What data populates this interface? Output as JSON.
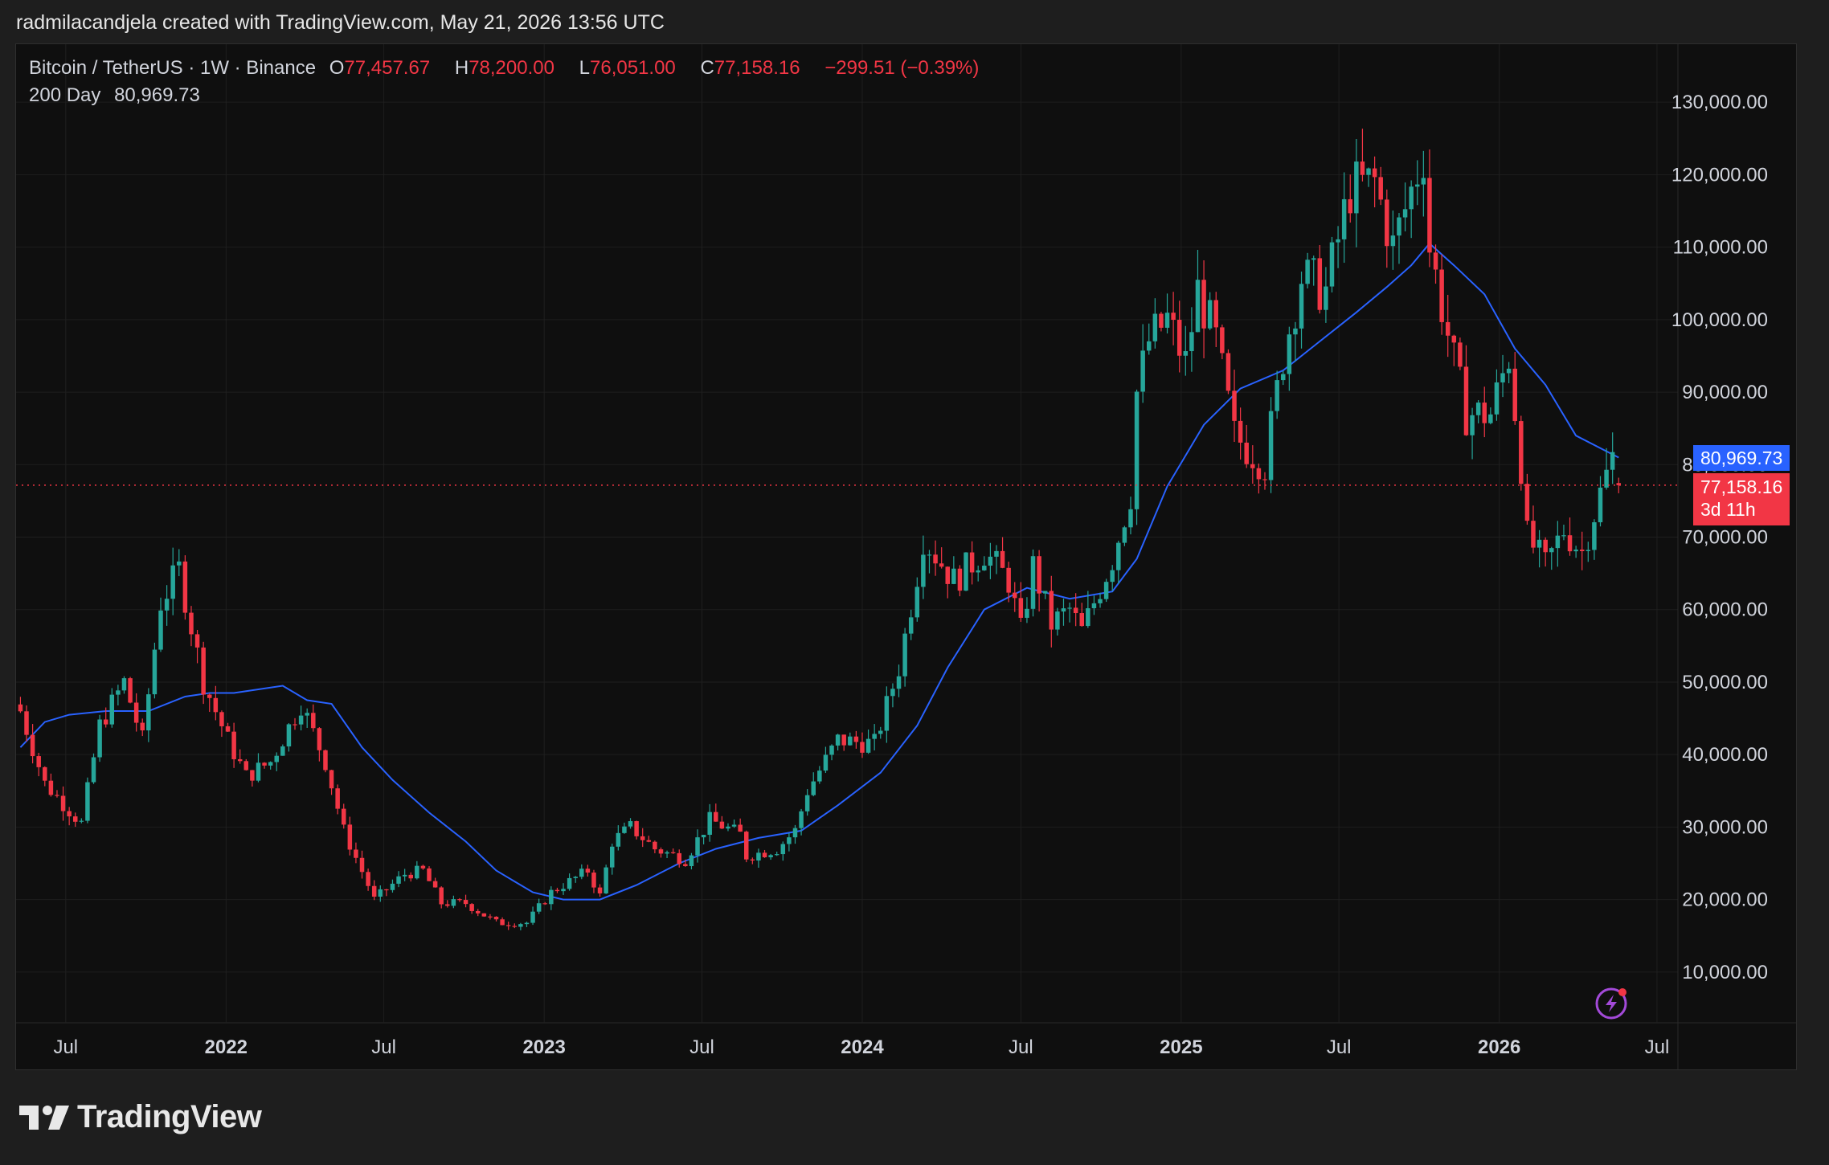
{
  "header": {
    "attribution": "radmilacandjela created with TradingView.com, May 21, 2026 13:56 UTC"
  },
  "legend": {
    "symbol": "Bitcoin / TetherUS · 1W · Binance",
    "open_label": "O",
    "open_value": "77,457.67",
    "high_label": "H",
    "high_value": "78,200.00",
    "low_label": "L",
    "low_value": "76,051.00",
    "close_label": "C",
    "close_value": "77,158.16",
    "change": "−299.51 (−0.39%)",
    "ma_label": "200 Day",
    "ma_value": "80,969.73"
  },
  "price_tags": {
    "ma": "80,969.73",
    "last": "77,158.16",
    "countdown": "3d 11h"
  },
  "footer": {
    "brand": "TradingView"
  },
  "colors": {
    "up": "#26a69a",
    "down": "#f23645",
    "ma": "#2962ff",
    "background": "#0f0f0f",
    "grid": "#1f1f1f",
    "text": "#d1d4dc"
  },
  "chart_data": {
    "type": "candlestick",
    "title": "Bitcoin / TetherUS · 1W · Binance",
    "ylim": [
      3000,
      138000
    ],
    "y_ticks": [
      10000,
      20000,
      30000,
      40000,
      50000,
      60000,
      70000,
      80000,
      90000,
      100000,
      110000,
      120000,
      130000
    ],
    "y_tick_labels": [
      "10,000.00",
      "20,000.00",
      "30,000.00",
      "40,000.00",
      "50,000.00",
      "60,000.00",
      "70,000.00",
      "80,000.00",
      "90,000.00",
      "100,000.00",
      "110,000.00",
      "120,000.00",
      "130,000.00"
    ],
    "x_ticks": [
      {
        "date": "2021-07-01",
        "label": "Jul",
        "bold": false
      },
      {
        "date": "2022-01-01",
        "label": "2022",
        "bold": true
      },
      {
        "date": "2022-07-01",
        "label": "Jul",
        "bold": false
      },
      {
        "date": "2023-01-01",
        "label": "2023",
        "bold": true
      },
      {
        "date": "2023-07-01",
        "label": "Jul",
        "bold": false
      },
      {
        "date": "2024-01-01",
        "label": "2024",
        "bold": true
      },
      {
        "date": "2024-07-01",
        "label": "Jul",
        "bold": false
      },
      {
        "date": "2025-01-01",
        "label": "2025",
        "bold": true
      },
      {
        "date": "2025-07-01",
        "label": "Jul",
        "bold": false
      },
      {
        "date": "2026-01-01",
        "label": "2026",
        "bold": true
      },
      {
        "date": "2026-07-01",
        "label": "Jul",
        "bold": false
      }
    ],
    "xlim": [
      "2021-05-05",
      "2026-07-25"
    ],
    "grid": true,
    "last_price": 77158.16,
    "ma_last": 80969.73,
    "price_anchors": [
      [
        "2021-05-10",
        46000
      ],
      [
        "2021-06-07",
        36000
      ],
      [
        "2021-07-19",
        30500
      ],
      [
        "2021-08-09",
        44000
      ],
      [
        "2021-09-06",
        50000
      ],
      [
        "2021-09-27",
        42000
      ],
      [
        "2021-10-18",
        61000
      ],
      [
        "2021-11-08",
        65500
      ],
      [
        "2021-12-06",
        50000
      ],
      [
        "2022-01-03",
        42000
      ],
      [
        "2022-01-24",
        37000
      ],
      [
        "2022-02-21",
        39000
      ],
      [
        "2022-03-28",
        47000
      ],
      [
        "2022-04-25",
        39000
      ],
      [
        "2022-05-16",
        29500
      ],
      [
        "2022-06-13",
        22000
      ],
      [
        "2022-06-20",
        20000
      ],
      [
        "2022-07-25",
        23500
      ],
      [
        "2022-08-15",
        24000
      ],
      [
        "2022-09-05",
        19500
      ],
      [
        "2022-10-03",
        19500
      ],
      [
        "2022-11-07",
        16800
      ],
      [
        "2022-12-12",
        16800
      ],
      [
        "2023-01-09",
        21000
      ],
      [
        "2023-02-20",
        24000
      ],
      [
        "2023-03-06",
        20500
      ],
      [
        "2023-03-20",
        28000
      ],
      [
        "2023-04-10",
        30000
      ],
      [
        "2023-05-08",
        27000
      ],
      [
        "2023-06-12",
        25500
      ],
      [
        "2023-07-10",
        31000
      ],
      [
        "2023-08-14",
        29000
      ],
      [
        "2023-08-21",
        26000
      ],
      [
        "2023-09-25",
        27000
      ],
      [
        "2023-10-16",
        29500
      ],
      [
        "2023-10-30",
        35000
      ],
      [
        "2023-12-04",
        42000
      ],
      [
        "2024-01-15",
        41500
      ],
      [
        "2024-02-12",
        52000
      ],
      [
        "2024-03-04",
        65000
      ],
      [
        "2024-03-11",
        70000
      ],
      [
        "2024-04-15",
        64000
      ],
      [
        "2024-05-20",
        68000
      ],
      [
        "2024-06-17",
        64000
      ],
      [
        "2024-07-01",
        57000
      ],
      [
        "2024-07-15",
        66000
      ],
      [
        "2024-08-05",
        58000
      ],
      [
        "2024-08-26",
        60000
      ],
      [
        "2024-09-09",
        57000
      ],
      [
        "2024-10-14",
        67000
      ],
      [
        "2024-11-04",
        76000
      ],
      [
        "2024-11-11",
        90000
      ],
      [
        "2024-11-25",
        97000
      ],
      [
        "2024-12-16",
        100000
      ],
      [
        "2025-01-06",
        94000
      ],
      [
        "2025-01-20",
        104000
      ],
      [
        "2025-02-10",
        97000
      ],
      [
        "2025-03-03",
        84000
      ],
      [
        "2025-04-07",
        80000
      ],
      [
        "2025-04-28",
        95000
      ],
      [
        "2025-05-19",
        106000
      ],
      [
        "2025-06-16",
        104000
      ],
      [
        "2025-07-14",
        118000
      ],
      [
        "2025-08-11",
        119000
      ],
      [
        "2025-09-01",
        110000
      ],
      [
        "2025-10-06",
        123000
      ],
      [
        "2025-10-13",
        110000
      ],
      [
        "2025-11-10",
        94000
      ],
      [
        "2025-11-24",
        87000
      ],
      [
        "2025-12-22",
        87000
      ],
      [
        "2026-01-12",
        95000
      ],
      [
        "2026-01-26",
        80000
      ],
      [
        "2026-02-02",
        70000
      ],
      [
        "2026-02-23",
        66000
      ],
      [
        "2026-03-16",
        71000
      ],
      [
        "2026-04-06",
        68000
      ],
      [
        "2026-04-27",
        76000
      ],
      [
        "2026-05-11",
        81000
      ],
      [
        "2026-05-18",
        77158
      ]
    ],
    "ma_200d": [
      [
        "2021-05-10",
        41000
      ],
      [
        "2021-06-07",
        44500
      ],
      [
        "2021-07-05",
        45500
      ],
      [
        "2021-08-16",
        46000
      ],
      [
        "2021-10-04",
        46000
      ],
      [
        "2021-11-15",
        48000
      ],
      [
        "2021-12-13",
        48500
      ],
      [
        "2022-01-10",
        48500
      ],
      [
        "2022-02-07",
        49000
      ],
      [
        "2022-03-07",
        49500
      ],
      [
        "2022-04-04",
        47500
      ],
      [
        "2022-05-02",
        47000
      ],
      [
        "2022-06-06",
        41000
      ],
      [
        "2022-07-11",
        36500
      ],
      [
        "2022-08-22",
        32000
      ],
      [
        "2022-10-03",
        28000
      ],
      [
        "2022-11-07",
        24000
      ],
      [
        "2022-12-19",
        21000
      ],
      [
        "2023-01-23",
        20000
      ],
      [
        "2023-03-06",
        20000
      ],
      [
        "2023-04-17",
        22000
      ],
      [
        "2023-06-05",
        25000
      ],
      [
        "2023-07-17",
        27000
      ],
      [
        "2023-09-04",
        28500
      ],
      [
        "2023-10-23",
        29500
      ],
      [
        "2023-12-04",
        33000
      ],
      [
        "2024-01-22",
        37500
      ],
      [
        "2024-03-04",
        44000
      ],
      [
        "2024-04-08",
        52000
      ],
      [
        "2024-05-20",
        60000
      ],
      [
        "2024-07-08",
        63000
      ],
      [
        "2024-08-26",
        61500
      ],
      [
        "2024-10-14",
        62500
      ],
      [
        "2024-11-11",
        67000
      ],
      [
        "2024-12-16",
        77000
      ],
      [
        "2025-01-27",
        85500
      ],
      [
        "2025-03-10",
        90500
      ],
      [
        "2025-04-28",
        93000
      ],
      [
        "2025-06-09",
        97000
      ],
      [
        "2025-07-21",
        101000
      ],
      [
        "2025-08-25",
        104500
      ],
      [
        "2025-09-22",
        107500
      ],
      [
        "2025-10-13",
        110500
      ],
      [
        "2025-11-10",
        107500
      ],
      [
        "2025-12-15",
        103500
      ],
      [
        "2026-01-19",
        96000
      ],
      [
        "2026-02-23",
        91000
      ],
      [
        "2026-03-30",
        84000
      ],
      [
        "2026-05-18",
        80969.73
      ]
    ]
  }
}
